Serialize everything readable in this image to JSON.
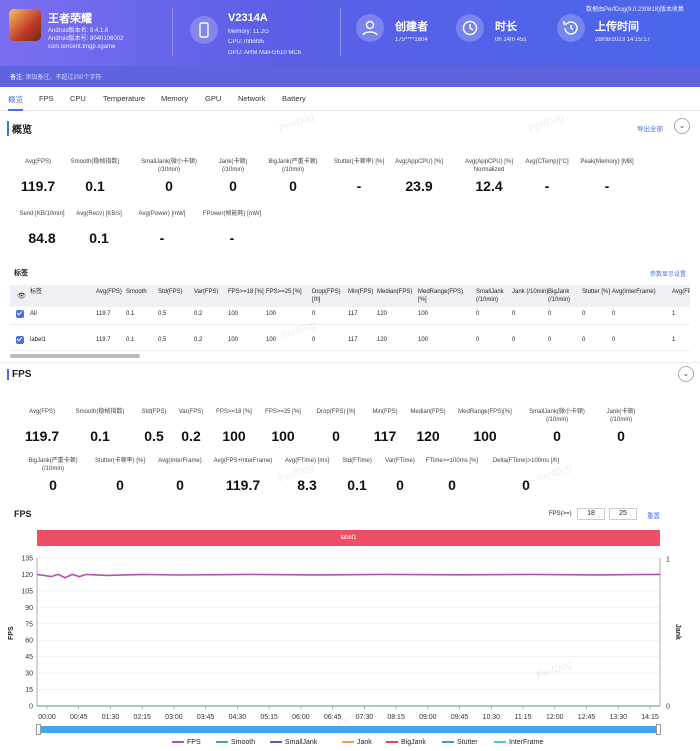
{
  "header": {
    "app_name": "王者荣耀",
    "android_ver": "Android版本名: 8.4.1.6",
    "android_code": "Android版本号: 8040106002",
    "package": "com.tencent.tmgp.sgame",
    "device": "V2314A",
    "memory": "Memory: 11.2G",
    "cpu": "CPU: mt6895",
    "gpu": "GPU: ARM Mali-G610 MC6",
    "creator_label": "创建者",
    "creator_value": "175****1604",
    "duration_label": "时长",
    "duration_value": "0h 14m 45s",
    "upload_label": "上传时间",
    "upload_value": "28/08/2023 14:15:17",
    "source": "数据由PerfDog(9.0.230818)版本收集"
  },
  "note": {
    "label": "备注:",
    "placeholder": "添加备注，不超过200个字符"
  },
  "tabs": [
    "概览",
    "FPS",
    "CPU",
    "Temperature",
    "Memory",
    "GPU",
    "Network",
    "Battery"
  ],
  "overview": {
    "title": "概览",
    "export": "导出全部",
    "row1": [
      {
        "l1": "Avg(FPS)",
        "l2": "",
        "v": "119.7"
      },
      {
        "l1": "Smooth(稳帧指数)",
        "l2": "",
        "v": "0.1"
      },
      {
        "l1": "SmallJank(微小卡顿)",
        "l2": "(/10min)",
        "v": "0"
      },
      {
        "l1": "Jank(卡顿)",
        "l2": "(/10min)",
        "v": "0"
      },
      {
        "l1": "BigJank(严重卡顿)",
        "l2": "(/10min)",
        "v": "0"
      },
      {
        "l1": "Stutter(卡顿率) [%]",
        "l2": "",
        "v": "-"
      },
      {
        "l1": "Avg(AppCPU) [%]",
        "l2": "",
        "v": "23.9"
      },
      {
        "l1": "Avg(AppCPU) [%]",
        "l2": "Normalized",
        "v": "12.4"
      },
      {
        "l1": "Avg(CTemp)[°C]",
        "l2": "",
        "v": "-"
      },
      {
        "l1": "Peak(Memory) [MB]",
        "l2": "",
        "v": "-"
      }
    ],
    "row2": [
      {
        "l1": "Send [KB/10min]",
        "l2": "",
        "v": "84.8"
      },
      {
        "l1": "Avg(Recv) [KB/s]",
        "l2": "",
        "v": "0.1"
      },
      {
        "l1": "Avg(Power) [mW]",
        "l2": "",
        "v": "-"
      },
      {
        "l1": "FPower(帧能耗) [mW]",
        "l2": "",
        "v": "-"
      }
    ]
  },
  "labels": {
    "title": "标签",
    "settings": "参数显示设置",
    "headers": [
      "标签",
      "Avg(FPS)",
      "Smooth",
      "Std(FPS)",
      "Var(FPS)",
      "FPS>=18 [%]",
      "FPS>=25 [%]",
      "Drop(FPS) [/h]",
      "Min(FPS)",
      "Median(FPS)",
      "MedRange(FPS)[%]",
      "SmallJank (/10min)",
      "Jank (/10min)",
      "BigJank (/10min)",
      "Stutter [%]",
      "Avg(InterFrame)",
      "Avg(FPs+"
    ],
    "rows": [
      [
        "All",
        "119.7",
        "0.1",
        "0.5",
        "0.2",
        "100",
        "100",
        "0",
        "117",
        "120",
        "100",
        "0",
        "0",
        "0",
        "0",
        "0",
        "1"
      ],
      [
        "label1",
        "119.7",
        "0.1",
        "0.5",
        "0.2",
        "100",
        "100",
        "0",
        "117",
        "120",
        "100",
        "0",
        "0",
        "0",
        "0",
        "0",
        "1"
      ]
    ]
  },
  "fps_section": {
    "title": "FPS",
    "row1": [
      {
        "l1": "Avg(FPS)",
        "l2": "",
        "v": "119.7"
      },
      {
        "l1": "Smooth(稳帧指数)",
        "l2": "",
        "v": "0.1"
      },
      {
        "l1": "Std(FPS)",
        "l2": "",
        "v": "0.5"
      },
      {
        "l1": "Var(FPS)",
        "l2": "",
        "v": "0.2"
      },
      {
        "l1": "FPS>=18 [%]",
        "l2": "",
        "v": "100"
      },
      {
        "l1": "FPS>=25 [%]",
        "l2": "",
        "v": "100"
      },
      {
        "l1": "Drop(FPS) [/h]",
        "l2": "",
        "v": "0"
      },
      {
        "l1": "Min(FPS)",
        "l2": "",
        "v": "117"
      },
      {
        "l1": "Median(FPS)",
        "l2": "",
        "v": "120"
      },
      {
        "l1": "MedRange(FPS)[%]",
        "l2": "",
        "v": "100"
      },
      {
        "l1": "SmallJank(微小卡顿)",
        "l2": "(/10min)",
        "v": "0"
      },
      {
        "l1": "Jank(卡顿)",
        "l2": "(/10min)",
        "v": "0"
      }
    ],
    "row2": [
      {
        "l1": "BigJank(严重卡顿)",
        "l2": "(/10min)",
        "v": "0"
      },
      {
        "l1": "Stutter(卡顿率) [%]",
        "l2": "",
        "v": "0"
      },
      {
        "l1": "Avg(InterFrame)",
        "l2": "",
        "v": "0"
      },
      {
        "l1": "Avg(FPS+InterFrame)",
        "l2": "",
        "v": "119.7"
      },
      {
        "l1": "Avg(FTime) [ms]",
        "l2": "",
        "v": "8.3"
      },
      {
        "l1": "Std(FTime)",
        "l2": "",
        "v": "0.1"
      },
      {
        "l1": "Var(FTime)",
        "l2": "",
        "v": "0"
      },
      {
        "l1": "FTime>=100ms [%]",
        "l2": "",
        "v": "0"
      },
      {
        "l1": "Delta(FTime)>100ms [/h]",
        "l2": "",
        "v": "0"
      }
    ]
  },
  "chart_controls": {
    "title": "FPS",
    "fps_label": "FPS(>=)",
    "fps_a": "18",
    "fps_b": "25",
    "reset": "重置",
    "band": "label1"
  },
  "chart_data": {
    "type": "line",
    "ylabel": "FPS",
    "y2label": "Jank",
    "ylim": [
      0,
      135
    ],
    "yticks": [
      0,
      15,
      30,
      45,
      60,
      75,
      90,
      105,
      120,
      135
    ],
    "y2ticks": [
      0,
      1
    ],
    "xticks": [
      "00:00",
      "00:45",
      "01:30",
      "02:15",
      "03:00",
      "03:45",
      "04:30",
      "05:15",
      "06:00",
      "06:45",
      "07:30",
      "08:15",
      "09:00",
      "09:45",
      "10:30",
      "11:15",
      "12:00",
      "12:45",
      "13:30",
      "14:15"
    ],
    "x_range_s": [
      0,
      885
    ],
    "series": [
      {
        "name": "FPS",
        "color": "#b44fb4",
        "points": [
          [
            0,
            120
          ],
          [
            10,
            119
          ],
          [
            20,
            118
          ],
          [
            30,
            120
          ],
          [
            40,
            117
          ],
          [
            50,
            120
          ],
          [
            60,
            118
          ],
          [
            70,
            120
          ],
          [
            100,
            119
          ],
          [
            150,
            120
          ],
          [
            200,
            119.5
          ],
          [
            300,
            120
          ],
          [
            400,
            119.6
          ],
          [
            500,
            120
          ],
          [
            600,
            119.7
          ],
          [
            700,
            120
          ],
          [
            800,
            119.6
          ],
          [
            885,
            120
          ]
        ]
      },
      {
        "name": "Smooth",
        "color": "#3cb371",
        "points": [
          [
            0,
            0
          ],
          [
            885,
            0
          ]
        ]
      },
      {
        "name": "SmallJank",
        "color": "#7a4ec9",
        "points": [
          [
            0,
            0
          ],
          [
            885,
            0
          ]
        ]
      },
      {
        "name": "Jank",
        "color": "#f0a040",
        "points": [
          [
            0,
            0
          ],
          [
            885,
            0
          ]
        ]
      },
      {
        "name": "BigJank",
        "color": "#e04848",
        "points": [
          [
            0,
            0
          ],
          [
            885,
            0
          ]
        ]
      },
      {
        "name": "Stutter",
        "color": "#4a90d9",
        "points": [
          [
            0,
            0
          ],
          [
            885,
            0
          ]
        ]
      },
      {
        "name": "InterFrame",
        "color": "#40c8e0",
        "points": [
          [
            0,
            0
          ],
          [
            885,
            0
          ]
        ]
      }
    ]
  }
}
